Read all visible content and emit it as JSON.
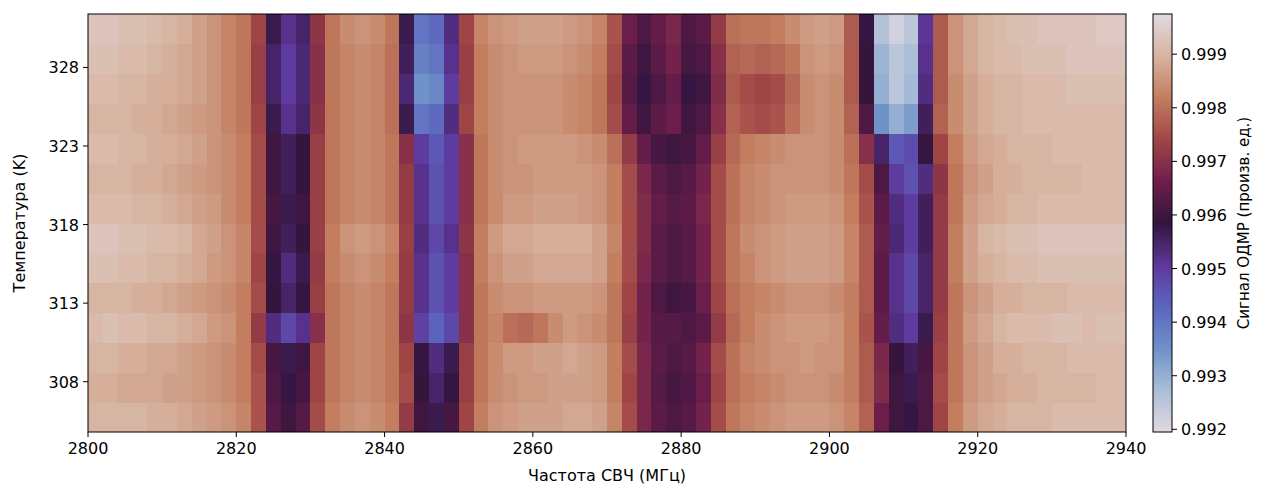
{
  "chart_data": {
    "type": "heatmap",
    "xlabel": "Частота СВЧ (МГц)",
    "ylabel": "Температура (K)",
    "xlim": [
      2800,
      2940
    ],
    "ylim": [
      304.8,
      331.4
    ],
    "xticks": [
      2800,
      2820,
      2840,
      2860,
      2880,
      2900,
      2920,
      2940
    ],
    "yticks": [
      308,
      313,
      318,
      323,
      328
    ],
    "x_edges": [
      2800,
      2802,
      2804,
      2806,
      2808,
      2810,
      2812,
      2814,
      2816,
      2818,
      2820,
      2822,
      2824,
      2826,
      2828,
      2830,
      2832,
      2834,
      2836,
      2838,
      2840,
      2842,
      2844,
      2846,
      2848,
      2850,
      2852,
      2854,
      2856,
      2858,
      2860,
      2862,
      2864,
      2866,
      2868,
      2870,
      2872,
      2874,
      2876,
      2878,
      2880,
      2882,
      2884,
      2886,
      2888,
      2890,
      2892,
      2894,
      2896,
      2898,
      2900,
      2902,
      2904,
      2906,
      2908,
      2910,
      2912,
      2914,
      2916,
      2918,
      2920,
      2922,
      2924,
      2926,
      2928,
      2930,
      2932,
      2934,
      2936,
      2938,
      2940
    ],
    "y_edges": [
      304.8,
      306.7,
      308.6,
      310.5,
      312.4,
      314.3,
      316.2,
      318.1,
      320.0,
      321.9,
      323.8,
      325.7,
      327.6,
      329.5,
      331.4
    ],
    "values": [
      [
        0.999,
        0.999,
        0.999,
        0.999,
        0.9989,
        0.9989,
        0.9988,
        0.9987,
        0.9986,
        0.9985,
        0.9983,
        0.9976,
        0.9963,
        0.996,
        0.9963,
        0.9975,
        0.9982,
        0.9984,
        0.9985,
        0.9984,
        0.9982,
        0.9972,
        0.996,
        0.9957,
        0.9961,
        0.9974,
        0.9982,
        0.9985,
        0.9986,
        0.9987,
        0.9987,
        0.9987,
        0.9988,
        0.9988,
        0.9987,
        0.9983,
        0.9975,
        0.9968,
        0.9964,
        0.9962,
        0.9963,
        0.9967,
        0.9975,
        0.9981,
        0.9983,
        0.9984,
        0.9985,
        0.9986,
        0.9986,
        0.9986,
        0.9985,
        0.9983,
        0.9978,
        0.9966,
        0.996,
        0.9958,
        0.9962,
        0.9974,
        0.9982,
        0.9986,
        0.9988,
        0.9989,
        0.999,
        0.999,
        0.999,
        0.9991,
        0.9991,
        0.9991,
        0.9991,
        0.9991
      ],
      [
        0.9989,
        0.9989,
        0.9988,
        0.9988,
        0.9988,
        0.9987,
        0.9987,
        0.9986,
        0.9985,
        0.9984,
        0.9982,
        0.9976,
        0.9962,
        0.9958,
        0.9961,
        0.9974,
        0.9981,
        0.9983,
        0.9984,
        0.9983,
        0.9981,
        0.9975,
        0.9959,
        0.9955,
        0.9958,
        0.9973,
        0.9981,
        0.9984,
        0.9985,
        0.9986,
        0.9986,
        0.9987,
        0.9987,
        0.9987,
        0.9986,
        0.9982,
        0.9974,
        0.9968,
        0.9963,
        0.9961,
        0.9962,
        0.9966,
        0.9974,
        0.998,
        0.9982,
        0.9983,
        0.9984,
        0.9985,
        0.9985,
        0.9985,
        0.9984,
        0.9982,
        0.9977,
        0.9969,
        0.996,
        0.9957,
        0.9962,
        0.9975,
        0.9981,
        0.9985,
        0.9987,
        0.9988,
        0.9989,
        0.9989,
        0.999,
        0.999,
        0.999,
        0.999,
        0.9991,
        0.9991
      ],
      [
        0.999,
        0.999,
        0.9989,
        0.9989,
        0.9988,
        0.9988,
        0.9987,
        0.9986,
        0.9985,
        0.9984,
        0.9982,
        0.9975,
        0.9961,
        0.9957,
        0.996,
        0.9974,
        0.9981,
        0.9983,
        0.9984,
        0.9983,
        0.9981,
        0.9974,
        0.9958,
        0.9953,
        0.9957,
        0.9973,
        0.9981,
        0.9984,
        0.9986,
        0.9986,
        0.9987,
        0.9987,
        0.9988,
        0.9987,
        0.9986,
        0.9982,
        0.9975,
        0.9968,
        0.9964,
        0.9962,
        0.9963,
        0.9967,
        0.9975,
        0.998,
        0.9983,
        0.9984,
        0.9985,
        0.9985,
        0.9986,
        0.9985,
        0.9985,
        0.9982,
        0.9977,
        0.9968,
        0.9959,
        0.9956,
        0.9961,
        0.9974,
        0.9981,
        0.9985,
        0.9987,
        0.9989,
        0.9989,
        0.999,
        0.999,
        0.999,
        0.9991,
        0.9991,
        0.9991,
        0.9991
      ],
      [
        0.9991,
        0.9992,
        0.9991,
        0.9991,
        0.999,
        0.999,
        0.9989,
        0.9988,
        0.9986,
        0.9985,
        0.9982,
        0.9972,
        0.9953,
        0.9948,
        0.9952,
        0.997,
        0.9981,
        0.9983,
        0.9984,
        0.9983,
        0.9981,
        0.9971,
        0.9949,
        0.9943,
        0.9948,
        0.997,
        0.9981,
        0.9983,
        0.998,
        0.9979,
        0.9981,
        0.9984,
        0.9986,
        0.9985,
        0.9984,
        0.9981,
        0.9973,
        0.9967,
        0.9963,
        0.9963,
        0.9962,
        0.9964,
        0.9972,
        0.9979,
        0.9982,
        0.9984,
        0.9985,
        0.9986,
        0.9986,
        0.9986,
        0.9985,
        0.9982,
        0.9976,
        0.9965,
        0.9953,
        0.995,
        0.9957,
        0.9973,
        0.9981,
        0.9986,
        0.9988,
        0.999,
        0.9991,
        0.9991,
        0.9991,
        0.9992,
        0.9992,
        0.9991,
        0.9992,
        0.9992
      ],
      [
        0.999,
        0.999,
        0.999,
        0.9989,
        0.9989,
        0.9988,
        0.9987,
        0.9986,
        0.9985,
        0.9984,
        0.9982,
        0.9975,
        0.9959,
        0.9955,
        0.9958,
        0.9973,
        0.9981,
        0.9983,
        0.9984,
        0.9983,
        0.9981,
        0.9972,
        0.9952,
        0.9946,
        0.995,
        0.997,
        0.9981,
        0.9984,
        0.9985,
        0.9985,
        0.9986,
        0.9986,
        0.9986,
        0.9986,
        0.9985,
        0.9981,
        0.9974,
        0.9967,
        0.9962,
        0.996,
        0.9961,
        0.9966,
        0.9974,
        0.998,
        0.9982,
        0.9983,
        0.9984,
        0.9985,
        0.9985,
        0.9985,
        0.9984,
        0.9982,
        0.9977,
        0.9964,
        0.9952,
        0.9948,
        0.9955,
        0.9972,
        0.9981,
        0.9985,
        0.9987,
        0.9989,
        0.9989,
        0.999,
        0.999,
        0.999,
        0.9991,
        0.9991,
        0.9991,
        0.9991
      ],
      [
        0.9992,
        0.9992,
        0.9991,
        0.9991,
        0.999,
        0.999,
        0.9989,
        0.9988,
        0.9986,
        0.9985,
        0.9983,
        0.9974,
        0.9958,
        0.9953,
        0.9957,
        0.9972,
        0.9982,
        0.9984,
        0.9985,
        0.9984,
        0.9982,
        0.9972,
        0.9952,
        0.9946,
        0.995,
        0.997,
        0.9982,
        0.9985,
        0.9987,
        0.9987,
        0.9988,
        0.9988,
        0.9988,
        0.9988,
        0.9987,
        0.9982,
        0.9975,
        0.9968,
        0.9964,
        0.9962,
        0.9963,
        0.9967,
        0.9975,
        0.9981,
        0.9983,
        0.9985,
        0.9986,
        0.9987,
        0.9987,
        0.9987,
        0.9986,
        0.9983,
        0.9977,
        0.9964,
        0.9952,
        0.9948,
        0.9955,
        0.9972,
        0.9982,
        0.9987,
        0.9989,
        0.999,
        0.9991,
        0.9991,
        0.9992,
        0.9992,
        0.9992,
        0.9992,
        0.9992,
        0.9992
      ],
      [
        0.9993,
        0.9993,
        0.9992,
        0.9992,
        0.9991,
        0.9991,
        0.999,
        0.9988,
        0.9987,
        0.9985,
        0.9983,
        0.9975,
        0.996,
        0.9956,
        0.9959,
        0.9973,
        0.9982,
        0.9985,
        0.9986,
        0.9985,
        0.9983,
        0.9973,
        0.9953,
        0.9948,
        0.9952,
        0.9971,
        0.9982,
        0.9986,
        0.9988,
        0.9988,
        0.9989,
        0.9989,
        0.9989,
        0.9989,
        0.9987,
        0.9983,
        0.9975,
        0.9969,
        0.9964,
        0.9962,
        0.9963,
        0.9967,
        0.9975,
        0.9981,
        0.9984,
        0.9985,
        0.9986,
        0.9987,
        0.9987,
        0.9987,
        0.9986,
        0.9983,
        0.9977,
        0.9965,
        0.9954,
        0.995,
        0.9956,
        0.9972,
        0.9982,
        0.9987,
        0.999,
        0.9991,
        0.9992,
        0.9992,
        0.9993,
        0.9993,
        0.9993,
        0.9993,
        0.9993,
        0.9993
      ],
      [
        0.9991,
        0.9991,
        0.9991,
        0.999,
        0.999,
        0.9989,
        0.9988,
        0.9987,
        0.9986,
        0.9984,
        0.9982,
        0.9975,
        0.9961,
        0.9957,
        0.996,
        0.9973,
        0.9981,
        0.9983,
        0.9984,
        0.9983,
        0.9981,
        0.9972,
        0.9952,
        0.9946,
        0.995,
        0.997,
        0.9981,
        0.9984,
        0.9986,
        0.9986,
        0.9987,
        0.9987,
        0.9987,
        0.9986,
        0.9985,
        0.9982,
        0.9975,
        0.9969,
        0.9965,
        0.9963,
        0.9964,
        0.9968,
        0.9975,
        0.998,
        0.9983,
        0.9984,
        0.9985,
        0.9986,
        0.9986,
        0.9986,
        0.9985,
        0.9982,
        0.9976,
        0.9964,
        0.9953,
        0.995,
        0.9956,
        0.9972,
        0.9981,
        0.9986,
        0.9988,
        0.9989,
        0.999,
        0.999,
        0.9991,
        0.9991,
        0.9991,
        0.9991,
        0.9991,
        0.9991
      ],
      [
        0.999,
        0.999,
        0.999,
        0.9989,
        0.9989,
        0.9988,
        0.9987,
        0.9986,
        0.9985,
        0.9984,
        0.9982,
        0.9975,
        0.996,
        0.9956,
        0.9959,
        0.9973,
        0.9981,
        0.9983,
        0.9984,
        0.9983,
        0.9981,
        0.9972,
        0.9952,
        0.9946,
        0.995,
        0.997,
        0.9981,
        0.9984,
        0.9985,
        0.9985,
        0.9986,
        0.9986,
        0.9986,
        0.9986,
        0.9985,
        0.9982,
        0.9975,
        0.9968,
        0.9964,
        0.9962,
        0.9963,
        0.9967,
        0.9975,
        0.998,
        0.9983,
        0.9984,
        0.9985,
        0.9985,
        0.9985,
        0.9985,
        0.9984,
        0.9981,
        0.9975,
        0.9962,
        0.995,
        0.9946,
        0.9953,
        0.9971,
        0.9981,
        0.9985,
        0.9987,
        0.9989,
        0.9989,
        0.999,
        0.999,
        0.999,
        0.999,
        0.9991,
        0.9991,
        0.9991
      ],
      [
        0.9991,
        0.9991,
        0.999,
        0.999,
        0.9989,
        0.9989,
        0.9988,
        0.9987,
        0.9985,
        0.9984,
        0.9982,
        0.9975,
        0.996,
        0.9956,
        0.9959,
        0.9973,
        0.9981,
        0.9983,
        0.9984,
        0.9983,
        0.9981,
        0.997,
        0.995,
        0.9945,
        0.995,
        0.997,
        0.9981,
        0.9984,
        0.9985,
        0.9986,
        0.9986,
        0.9986,
        0.9986,
        0.9985,
        0.9984,
        0.998,
        0.9972,
        0.9965,
        0.9961,
        0.996,
        0.9961,
        0.9965,
        0.9973,
        0.9979,
        0.9982,
        0.9983,
        0.9984,
        0.9985,
        0.9985,
        0.9985,
        0.9984,
        0.998,
        0.997,
        0.9955,
        0.9945,
        0.9947,
        0.9958,
        0.9974,
        0.9982,
        0.9986,
        0.9988,
        0.9989,
        0.999,
        0.999,
        0.999,
        0.9991,
        0.9991,
        0.9991,
        0.9991,
        0.9991
      ],
      [
        0.999,
        0.999,
        0.999,
        0.9989,
        0.9989,
        0.9988,
        0.9987,
        0.9986,
        0.9985,
        0.9983,
        0.9981,
        0.9974,
        0.9957,
        0.9952,
        0.9955,
        0.9971,
        0.9981,
        0.9983,
        0.9984,
        0.9983,
        0.998,
        0.9957,
        0.994,
        0.9942,
        0.9953,
        0.9974,
        0.9982,
        0.9984,
        0.9985,
        0.9985,
        0.9985,
        0.9985,
        0.9984,
        0.9983,
        0.9981,
        0.9975,
        0.9965,
        0.996,
        0.9964,
        0.9966,
        0.996,
        0.9962,
        0.997,
        0.9978,
        0.9976,
        0.9975,
        0.9976,
        0.998,
        0.9984,
        0.9985,
        0.9984,
        0.9978,
        0.9962,
        0.9935,
        0.993,
        0.9933,
        0.9956,
        0.9978,
        0.9984,
        0.9987,
        0.9989,
        0.999,
        0.999,
        0.9991,
        0.9991,
        0.9991,
        0.9991,
        0.9991,
        0.9991,
        0.9991
      ],
      [
        0.9991,
        0.9991,
        0.999,
        0.999,
        0.9989,
        0.9989,
        0.9988,
        0.9987,
        0.9985,
        0.9983,
        0.9981,
        0.9973,
        0.9955,
        0.995,
        0.9954,
        0.997,
        0.9981,
        0.9983,
        0.9984,
        0.9983,
        0.998,
        0.9954,
        0.9935,
        0.9937,
        0.995,
        0.9973,
        0.9982,
        0.9984,
        0.9985,
        0.9985,
        0.9985,
        0.9985,
        0.9984,
        0.9983,
        0.9981,
        0.9974,
        0.9963,
        0.9958,
        0.9962,
        0.9965,
        0.9958,
        0.996,
        0.9969,
        0.9977,
        0.9975,
        0.9974,
        0.9975,
        0.9979,
        0.9984,
        0.9985,
        0.9984,
        0.9977,
        0.9959,
        0.993,
        0.9925,
        0.9928,
        0.9953,
        0.9977,
        0.9984,
        0.9987,
        0.9989,
        0.999,
        0.999,
        0.9991,
        0.9991,
        0.9991,
        0.9992,
        0.9992,
        0.9992,
        0.9992
      ],
      [
        0.9992,
        0.9992,
        0.9991,
        0.9991,
        0.999,
        0.9989,
        0.9988,
        0.9987,
        0.9985,
        0.9983,
        0.9981,
        0.9973,
        0.9955,
        0.995,
        0.9954,
        0.997,
        0.9981,
        0.9983,
        0.9984,
        0.9983,
        0.998,
        0.9956,
        0.9938,
        0.994,
        0.9952,
        0.9973,
        0.9982,
        0.9984,
        0.9985,
        0.9986,
        0.9986,
        0.9986,
        0.9985,
        0.9984,
        0.9982,
        0.9975,
        0.9964,
        0.996,
        0.9964,
        0.9967,
        0.9961,
        0.9962,
        0.997,
        0.9978,
        0.9979,
        0.9978,
        0.9979,
        0.9981,
        0.9985,
        0.9986,
        0.9985,
        0.9977,
        0.9959,
        0.9929,
        0.9925,
        0.9927,
        0.9952,
        0.9977,
        0.9985,
        0.9988,
        0.999,
        0.9991,
        0.9991,
        0.9992,
        0.9992,
        0.9992,
        0.9993,
        0.9993,
        0.9993,
        0.9993
      ],
      [
        0.9993,
        0.9993,
        0.9992,
        0.9992,
        0.9991,
        0.999,
        0.9989,
        0.9987,
        0.9985,
        0.9983,
        0.9981,
        0.9974,
        0.9957,
        0.9952,
        0.9955,
        0.9971,
        0.9981,
        0.9984,
        0.9985,
        0.9984,
        0.9981,
        0.9957,
        0.994,
        0.9942,
        0.9953,
        0.9974,
        0.9983,
        0.9985,
        0.9986,
        0.9987,
        0.9987,
        0.9987,
        0.9986,
        0.9985,
        0.9983,
        0.9976,
        0.9966,
        0.9962,
        0.9965,
        0.9968,
        0.9962,
        0.9964,
        0.9972,
        0.998,
        0.9981,
        0.9981,
        0.9982,
        0.9984,
        0.9986,
        0.9987,
        0.9986,
        0.9977,
        0.9958,
        0.9926,
        0.9922,
        0.9925,
        0.9951,
        0.9977,
        0.9985,
        0.9988,
        0.999,
        0.9991,
        0.9992,
        0.9992,
        0.9993,
        0.9993,
        0.9993,
        0.9993,
        0.9994,
        0.9994
      ]
    ],
    "colorbar": {
      "label": "Сигнал ОДМР (произв. ед.)",
      "lim": [
        0.99195,
        0.99975
      ],
      "ticks": [
        0.992,
        0.993,
        0.994,
        0.995,
        0.996,
        0.997,
        0.998,
        0.999
      ]
    }
  }
}
